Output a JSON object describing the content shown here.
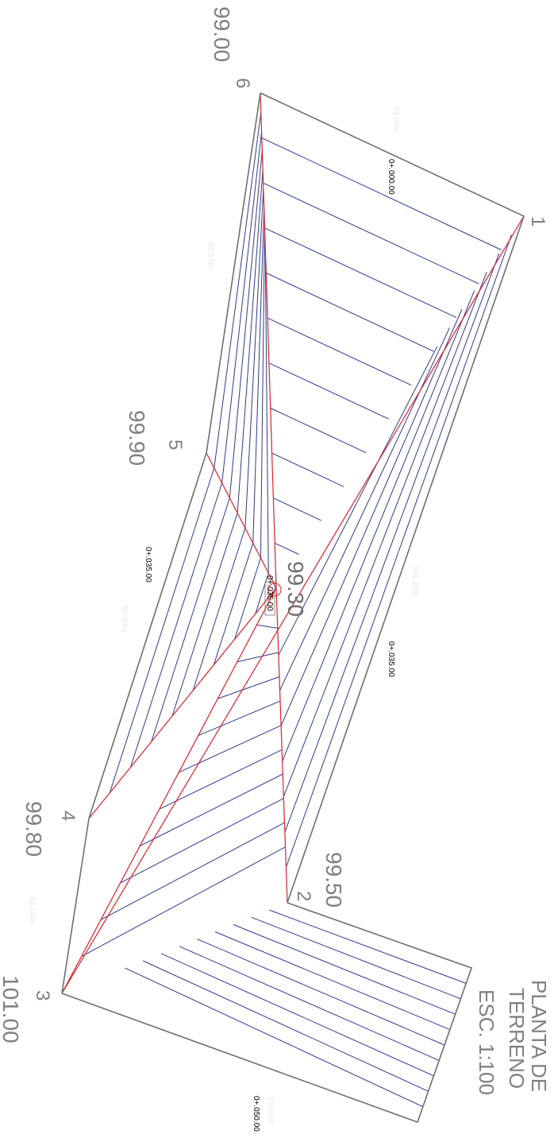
{
  "title": {
    "line1": "PLANTA DE",
    "line2": "TERRENO",
    "scale": "ESC. 1:100"
  },
  "vertices": [
    {
      "id": "1",
      "elevation": ""
    },
    {
      "id": "2",
      "elevation": "99.50"
    },
    {
      "id": "3",
      "elevation": "101.00"
    },
    {
      "id": "4",
      "elevation": "99.80"
    },
    {
      "id": "5",
      "elevation": "99.90"
    },
    {
      "id": "6",
      "elevation": "99.00"
    }
  ],
  "center": {
    "elevation": "99.30",
    "chainage": "0+.035.00"
  },
  "chainages": [
    "0+.000.00",
    "0+.035.00",
    "0+.035.00",
    "0+.050.00"
  ],
  "distances": [
    "52.00m",
    "85.57m",
    "101.20m",
    "60.00m",
    "32.10m",
    "73.00m"
  ],
  "colors": {
    "boundary": "#6e6e6e",
    "contour": "#2e3a8c",
    "divide": "#e0202a",
    "label": "#808080"
  }
}
